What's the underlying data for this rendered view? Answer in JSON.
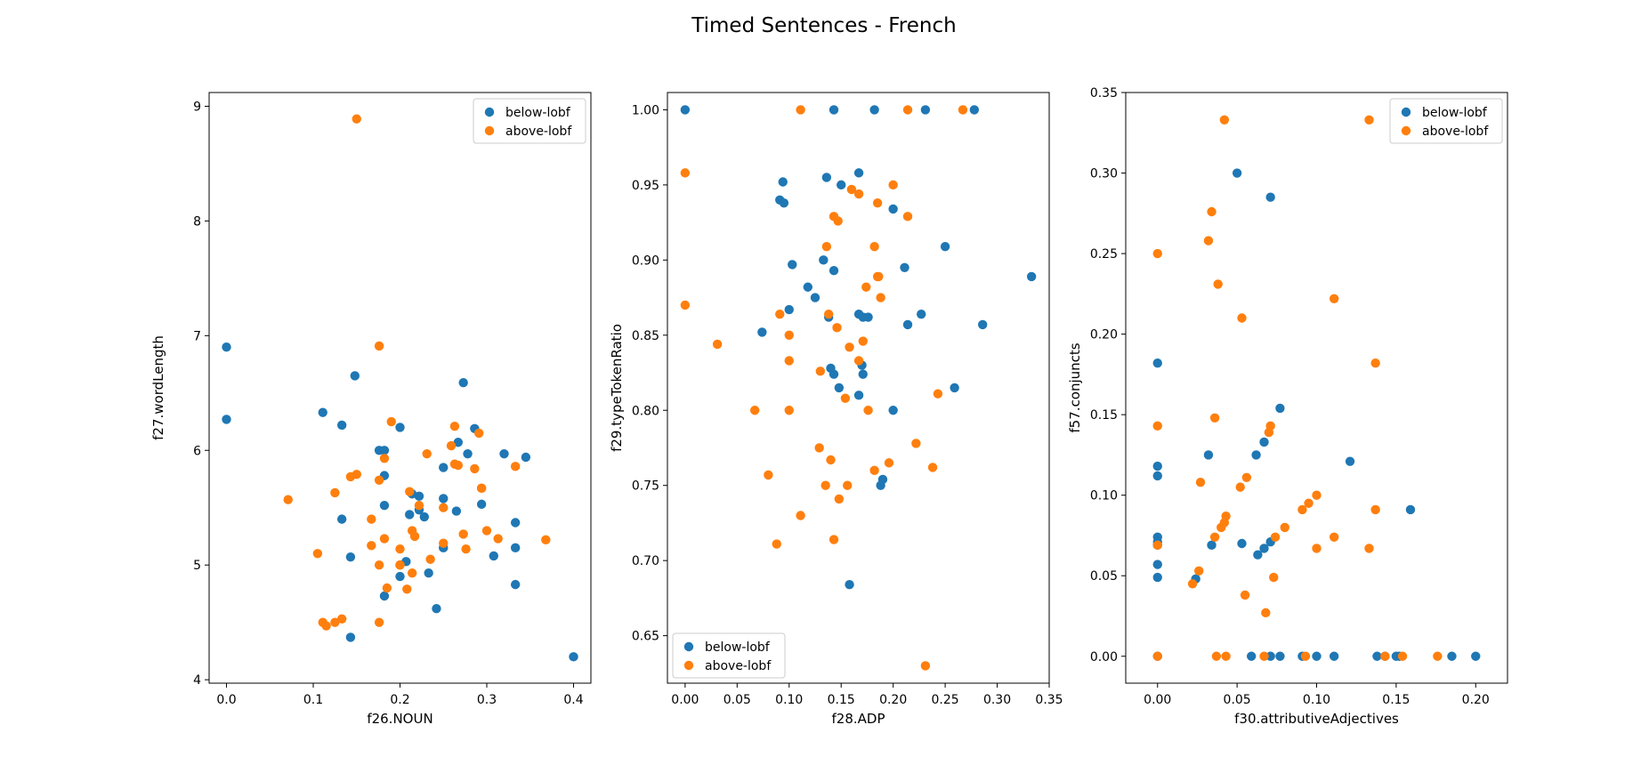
{
  "figure": {
    "title": "Timed Sentences - French"
  },
  "colors": {
    "below": "#1f77b4",
    "above": "#ff7f0e"
  },
  "chart_data": [
    {
      "type": "scatter",
      "xlabel": "f26.NOUN",
      "ylabel": "f27.wordLength",
      "xlim": [
        -0.02,
        0.42
      ],
      "ylim": [
        3.97,
        9.12
      ],
      "xticks": [
        0.0,
        0.1,
        0.2,
        0.3,
        0.4
      ],
      "xtick_labels": [
        "0.0",
        "0.1",
        "0.2",
        "0.3",
        "0.4"
      ],
      "yticks": [
        4,
        5,
        6,
        7,
        8,
        9
      ],
      "ytick_labels": [
        "4",
        "5",
        "6",
        "7",
        "8",
        "9"
      ],
      "legend": "top-right",
      "series": [
        {
          "name": "below-lobf",
          "color": "#1f77b4",
          "x": [
            0.0,
            0.0,
            0.111,
            0.133,
            0.148,
            0.133,
            0.143,
            0.176,
            0.182,
            0.182,
            0.182,
            0.2,
            0.2,
            0.207,
            0.211,
            0.214,
            0.222,
            0.222,
            0.228,
            0.233,
            0.242,
            0.25,
            0.25,
            0.25,
            0.265,
            0.267,
            0.273,
            0.278,
            0.286,
            0.294,
            0.308,
            0.32,
            0.333,
            0.333,
            0.333,
            0.345,
            0.4,
            0.143,
            0.182
          ],
          "y": [
            6.9,
            6.27,
            6.33,
            6.22,
            6.65,
            5.4,
            5.07,
            6.0,
            6.0,
            5.78,
            5.52,
            6.2,
            4.9,
            5.03,
            5.44,
            5.62,
            5.6,
            5.48,
            5.42,
            4.93,
            4.62,
            5.85,
            5.58,
            5.15,
            5.47,
            6.07,
            6.59,
            5.97,
            6.19,
            5.53,
            5.08,
            5.97,
            5.37,
            5.15,
            4.83,
            5.94,
            4.2,
            4.37,
            4.73
          ]
        },
        {
          "name": "above-lobf",
          "color": "#ff7f0e",
          "x": [
            0.15,
            0.071,
            0.105,
            0.111,
            0.115,
            0.125,
            0.125,
            0.133,
            0.143,
            0.15,
            0.167,
            0.167,
            0.176,
            0.176,
            0.176,
            0.182,
            0.182,
            0.185,
            0.19,
            0.2,
            0.2,
            0.2,
            0.2,
            0.208,
            0.211,
            0.214,
            0.214,
            0.217,
            0.222,
            0.231,
            0.235,
            0.25,
            0.25,
            0.259,
            0.263,
            0.263,
            0.267,
            0.273,
            0.276,
            0.286,
            0.291,
            0.294,
            0.294,
            0.3,
            0.313,
            0.333,
            0.368,
            0.176
          ],
          "y": [
            8.89,
            5.57,
            5.1,
            4.5,
            4.47,
            4.5,
            5.63,
            4.53,
            5.77,
            5.79,
            5.4,
            5.17,
            6.91,
            5.74,
            5.0,
            5.93,
            5.23,
            4.8,
            6.25,
            5.14,
            5.0,
            5.0,
            5.0,
            4.79,
            5.64,
            5.3,
            4.93,
            5.25,
            5.52,
            5.97,
            5.05,
            5.19,
            5.5,
            6.04,
            5.88,
            6.21,
            5.87,
            5.27,
            5.14,
            5.84,
            6.15,
            5.67,
            5.67,
            5.3,
            5.23,
            5.86,
            5.22,
            4.5
          ]
        }
      ]
    },
    {
      "type": "scatter",
      "xlabel": "f28.ADP",
      "ylabel": "f29.typeTokenRatio",
      "xlim": [
        -0.017,
        0.35
      ],
      "ylim": [
        0.6184,
        1.0115
      ],
      "xticks": [
        0.0,
        0.05,
        0.1,
        0.15,
        0.2,
        0.25,
        0.3,
        0.35
      ],
      "xtick_labels": [
        "0.00",
        "0.05",
        "0.10",
        "0.15",
        "0.20",
        "0.25",
        "0.30",
        "0.35"
      ],
      "yticks": [
        0.65,
        0.7,
        0.75,
        0.8,
        0.85,
        0.9,
        0.95,
        1.0
      ],
      "ytick_labels": [
        "0.65",
        "0.70",
        "0.75",
        "0.80",
        "0.85",
        "0.90",
        "0.95",
        "1.00"
      ],
      "legend": "bottom-left",
      "series": [
        {
          "name": "below-lobf",
          "color": "#1f77b4",
          "x": [
            0.0,
            0.143,
            0.182,
            0.231,
            0.278,
            0.074,
            0.091,
            0.094,
            0.095,
            0.1,
            0.103,
            0.118,
            0.125,
            0.133,
            0.136,
            0.138,
            0.14,
            0.143,
            0.143,
            0.148,
            0.15,
            0.167,
            0.167,
            0.167,
            0.17,
            0.171,
            0.171,
            0.176,
            0.188,
            0.19,
            0.2,
            0.2,
            0.211,
            0.214,
            0.227,
            0.25,
            0.259,
            0.286,
            0.333,
            0.158
          ],
          "y": [
            1.0,
            1.0,
            1.0,
            1.0,
            1.0,
            0.852,
            0.94,
            0.952,
            0.938,
            0.867,
            0.897,
            0.882,
            0.875,
            0.9,
            0.955,
            0.862,
            0.828,
            0.824,
            0.893,
            0.815,
            0.95,
            0.958,
            0.81,
            0.864,
            0.83,
            0.824,
            0.862,
            0.862,
            0.75,
            0.754,
            0.8,
            0.934,
            0.895,
            0.857,
            0.864,
            0.909,
            0.815,
            0.857,
            0.889,
            0.684
          ]
        },
        {
          "name": "above-lobf",
          "color": "#ff7f0e",
          "x": [
            0.0,
            0.0,
            0.031,
            0.067,
            0.08,
            0.088,
            0.091,
            0.1,
            0.1,
            0.1,
            0.111,
            0.111,
            0.129,
            0.13,
            0.135,
            0.136,
            0.138,
            0.14,
            0.143,
            0.143,
            0.146,
            0.147,
            0.148,
            0.154,
            0.156,
            0.158,
            0.16,
            0.167,
            0.167,
            0.171,
            0.174,
            0.176,
            0.182,
            0.182,
            0.185,
            0.185,
            0.188,
            0.196,
            0.2,
            0.214,
            0.214,
            0.222,
            0.231,
            0.238,
            0.243,
            0.267,
            0.186
          ],
          "y": [
            0.958,
            0.87,
            0.844,
            0.8,
            0.757,
            0.711,
            0.864,
            0.85,
            0.833,
            0.8,
            0.73,
            1.0,
            0.775,
            0.826,
            0.75,
            0.909,
            0.864,
            0.767,
            0.929,
            0.714,
            0.855,
            0.926,
            0.741,
            0.808,
            0.75,
            0.842,
            0.947,
            0.944,
            0.833,
            0.846,
            0.882,
            0.8,
            0.909,
            0.76,
            0.938,
            0.889,
            0.875,
            0.765,
            0.95,
            0.929,
            1.0,
            0.778,
            0.63,
            0.762,
            0.811,
            1.0,
            0.889
          ]
        }
      ]
    },
    {
      "type": "scatter",
      "xlabel": "f30.attributiveAdjectives",
      "ylabel": "f57.conjuncts",
      "xlim": [
        -0.02,
        0.22
      ],
      "ylim": [
        -0.0167,
        0.35
      ],
      "xticks": [
        0.0,
        0.05,
        0.1,
        0.15,
        0.2
      ],
      "xtick_labels": [
        "0.00",
        "0.05",
        "0.10",
        "0.15",
        "0.20"
      ],
      "yticks": [
        0.0,
        0.05,
        0.1,
        0.15,
        0.2,
        0.25,
        0.3,
        0.35
      ],
      "ytick_labels": [
        "0.00",
        "0.05",
        "0.10",
        "0.15",
        "0.20",
        "0.25",
        "0.30",
        "0.35"
      ],
      "legend": "top-right",
      "series": [
        {
          "name": "below-lobf",
          "color": "#1f77b4",
          "x": [
            0.0,
            0.0,
            0.0,
            0.0,
            0.0,
            0.0,
            0.0,
            0.0,
            0.0,
            0.024,
            0.032,
            0.034,
            0.05,
            0.053,
            0.059,
            0.062,
            0.063,
            0.067,
            0.067,
            0.071,
            0.071,
            0.071,
            0.077,
            0.091,
            0.1,
            0.111,
            0.121,
            0.138,
            0.143,
            0.15,
            0.152,
            0.159,
            0.185,
            0.2,
            0.077
          ],
          "y": [
            0.182,
            0.118,
            0.112,
            0.074,
            0.071,
            0.069,
            0.057,
            0.049,
            0.0,
            0.048,
            0.125,
            0.069,
            0.3,
            0.07,
            0.0,
            0.125,
            0.063,
            0.133,
            0.067,
            0.285,
            0.071,
            0.0,
            0.154,
            0.0,
            0.0,
            0.0,
            0.121,
            0.0,
            0.0,
            0.0,
            0.0,
            0.091,
            0.0,
            0.0,
            0.0
          ]
        },
        {
          "name": "above-lobf",
          "color": "#ff7f0e",
          "x": [
            0.0,
            0.0,
            0.0,
            0.0,
            0.022,
            0.026,
            0.027,
            0.032,
            0.034,
            0.036,
            0.036,
            0.037,
            0.038,
            0.04,
            0.042,
            0.043,
            0.043,
            0.052,
            0.053,
            0.055,
            0.056,
            0.067,
            0.068,
            0.07,
            0.071,
            0.073,
            0.074,
            0.08,
            0.091,
            0.093,
            0.095,
            0.1,
            0.1,
            0.111,
            0.111,
            0.133,
            0.133,
            0.137,
            0.137,
            0.143,
            0.154,
            0.176,
            0.042
          ],
          "y": [
            0.25,
            0.143,
            0.069,
            0.0,
            0.045,
            0.053,
            0.108,
            0.258,
            0.276,
            0.074,
            0.148,
            0.0,
            0.231,
            0.08,
            0.333,
            0.087,
            0.0,
            0.105,
            0.21,
            0.038,
            0.111,
            0.0,
            0.027,
            0.139,
            0.143,
            0.049,
            0.074,
            0.08,
            0.091,
            0.0,
            0.095,
            0.1,
            0.067,
            0.222,
            0.074,
            0.333,
            0.067,
            0.182,
            0.091,
            0.0,
            0.0,
            0.0,
            0.083
          ]
        }
      ]
    }
  ]
}
